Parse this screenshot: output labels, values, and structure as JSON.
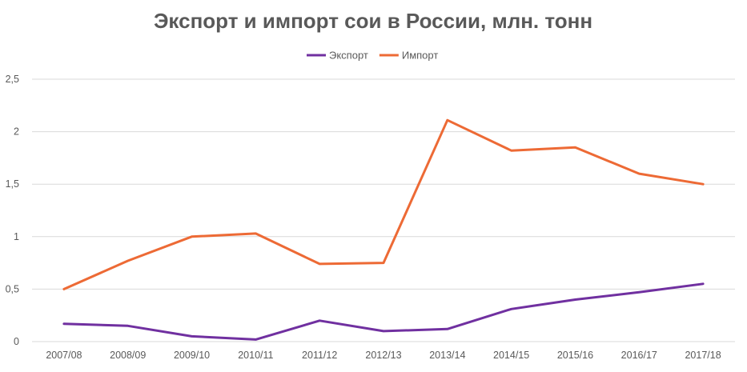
{
  "chart_data": {
    "type": "line",
    "title": "Экспорт и импорт сои в России, млн. тонн",
    "categories": [
      "2007/08",
      "2008/09",
      "2009/10",
      "2010/11",
      "2011/12",
      "2012/13",
      "2013/14",
      "2014/15",
      "2015/16",
      "2016/17",
      "2017/18"
    ],
    "yticks": [
      "0",
      "0,5",
      "1",
      "1,5",
      "2",
      "2,5"
    ],
    "ylim": [
      0,
      2.5
    ],
    "grid": true,
    "legend_position": "top",
    "series": [
      {
        "name": "Экспорт",
        "color": "#7030a0",
        "values": [
          0.17,
          0.15,
          0.05,
          0.02,
          0.2,
          0.1,
          0.12,
          0.31,
          0.4,
          0.47,
          0.55
        ]
      },
      {
        "name": "Импорт",
        "color": "#ed6a35",
        "values": [
          0.5,
          0.77,
          1.0,
          1.03,
          0.74,
          0.75,
          2.11,
          1.82,
          1.85,
          1.6,
          1.5
        ]
      }
    ]
  }
}
